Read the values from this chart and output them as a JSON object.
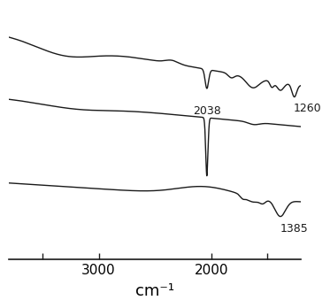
{
  "xlabel": "cm⁻¹",
  "xmin": 1200,
  "xmax": 3800,
  "background_color": "#ffffff",
  "line_color": "#1a1a1a",
  "ann_2038": "2038",
  "ann_1260": "1260",
  "ann_1385": "1385",
  "ann_fontsize": 9,
  "xlabel_fontsize": 13,
  "tick_fontsize": 11
}
